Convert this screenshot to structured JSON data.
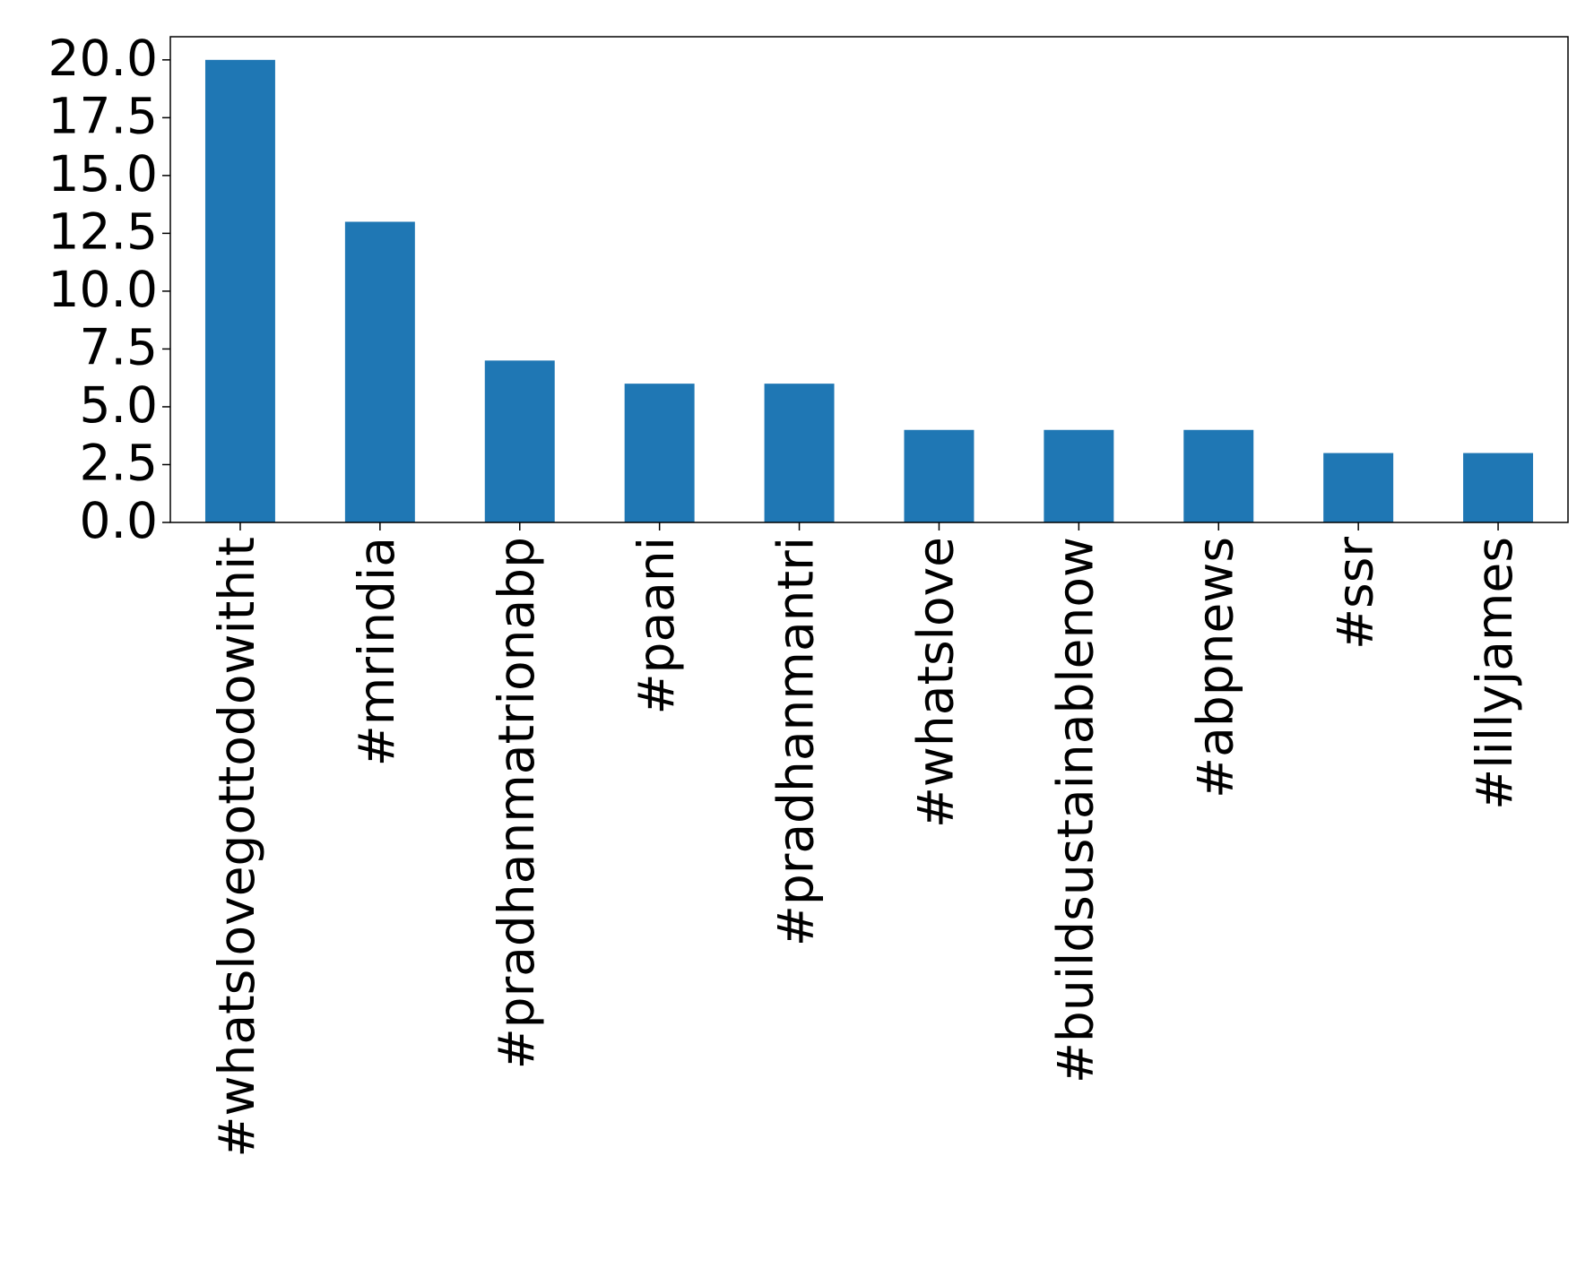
{
  "chart_data": {
    "type": "bar",
    "categories": [
      "#whatslovegottodowithit",
      "#mrindia",
      "#pradhanmatrionabp",
      "#paani",
      "#pradhanmantri",
      "#whatslove",
      "#buildsustainablenow",
      "#abpnews",
      "#ssr",
      "#lillyjames"
    ],
    "values": [
      20,
      13,
      7,
      6,
      6,
      4,
      4,
      4,
      3,
      3
    ],
    "color": "#1f77b4",
    "ylim": [
      0,
      21
    ],
    "yticks": [
      {
        "value": 0,
        "label": "0.0"
      },
      {
        "value": 2.5,
        "label": "2.5"
      },
      {
        "value": 5,
        "label": "5.0"
      },
      {
        "value": 7.5,
        "label": "7.5"
      },
      {
        "value": 10,
        "label": "10.0"
      },
      {
        "value": 12.5,
        "label": "12.5"
      },
      {
        "value": 15,
        "label": "15.0"
      },
      {
        "value": 17.5,
        "label": "17.5"
      },
      {
        "value": 20,
        "label": "20.0"
      }
    ],
    "grid": false
  }
}
